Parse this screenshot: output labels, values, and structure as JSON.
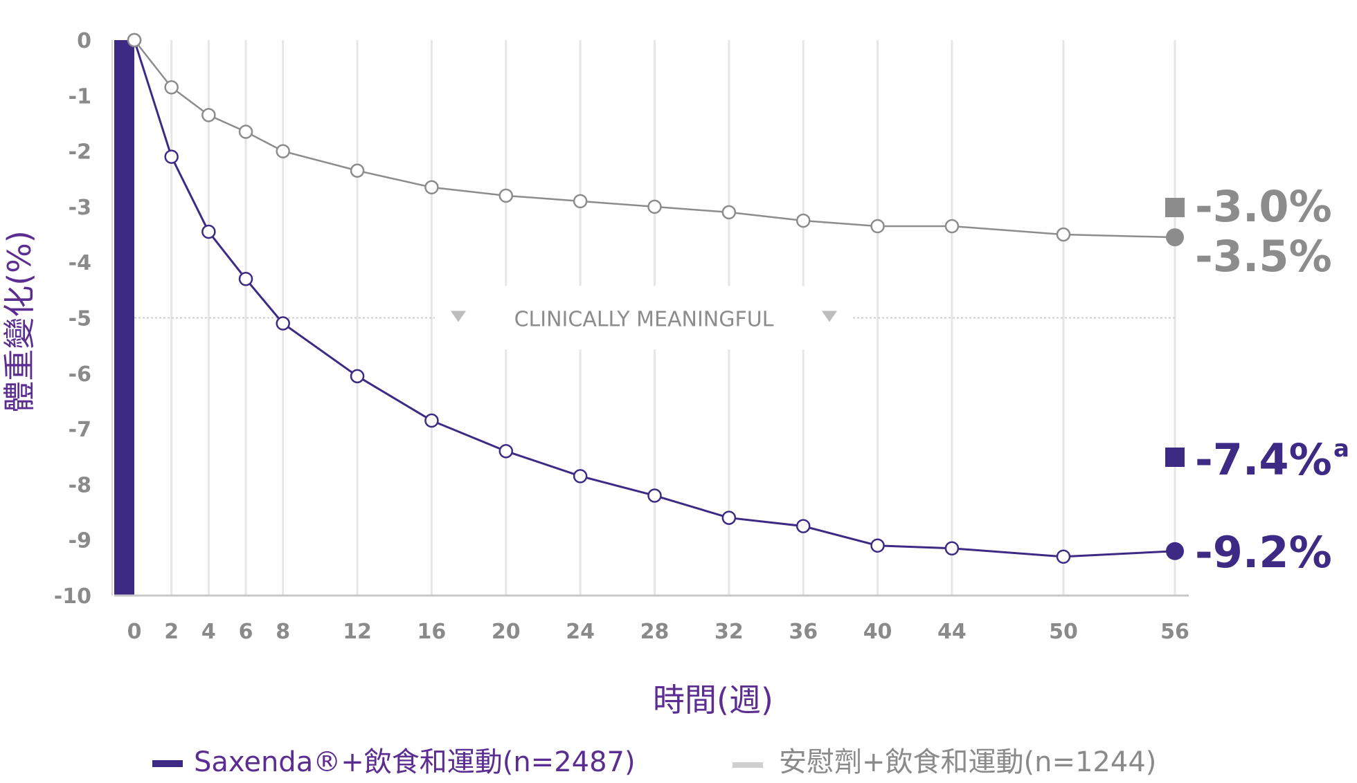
{
  "chart_data": {
    "type": "line",
    "ylabel": "體重變化(%)",
    "xlabel": "時間(週)",
    "x": [
      0,
      2,
      4,
      6,
      8,
      12,
      16,
      20,
      24,
      28,
      32,
      36,
      40,
      44,
      50,
      56
    ],
    "xlim": [
      0,
      56
    ],
    "ylim": [
      -10,
      0
    ],
    "yticks": [
      "0",
      "-1",
      "-2",
      "-3",
      "-4",
      "-5",
      "-6",
      "-7",
      "-8",
      "-9",
      "-10"
    ],
    "xticks": [
      "0",
      "2",
      "4",
      "6",
      "8",
      "12",
      "16",
      "20",
      "24",
      "28",
      "32",
      "36",
      "40",
      "44",
      "50",
      "56"
    ],
    "grid": "vertical",
    "series": [
      {
        "name": "Saxenda®+飲食和運動(n=2487)",
        "color": "#3d2a84",
        "values": [
          0,
          -2.1,
          -3.45,
          -4.3,
          -5.1,
          -6.05,
          -6.85,
          -7.4,
          -7.85,
          -8.2,
          -8.6,
          -8.75,
          -9.1,
          -9.15,
          -9.3,
          -9.2
        ]
      },
      {
        "name": "安慰劑+飲食和運動(n=1244)",
        "color": "#8c8c8c",
        "values": [
          0,
          -0.85,
          -1.35,
          -1.65,
          -2.0,
          -2.35,
          -2.65,
          -2.8,
          -2.9,
          -3.0,
          -3.1,
          -3.25,
          -3.35,
          -3.35,
          -3.5,
          -3.55
        ]
      }
    ],
    "reference_line": {
      "y": -5,
      "label": "CLINICALLY MEANINGFUL"
    },
    "end_labels": [
      {
        "text": "-3.0%",
        "marker": "square",
        "series": 1,
        "color": "#8c8c8c"
      },
      {
        "text": "-3.5%",
        "marker": "circle",
        "series": 1,
        "color": "#8c8c8c"
      },
      {
        "text": "-7.4%",
        "superscript": "a",
        "marker": "square",
        "series": 0,
        "color": "#3d2a84"
      },
      {
        "text": "-9.2%",
        "marker": "circle",
        "series": 0,
        "color": "#3d2a84"
      }
    ],
    "legend": "bottom"
  }
}
